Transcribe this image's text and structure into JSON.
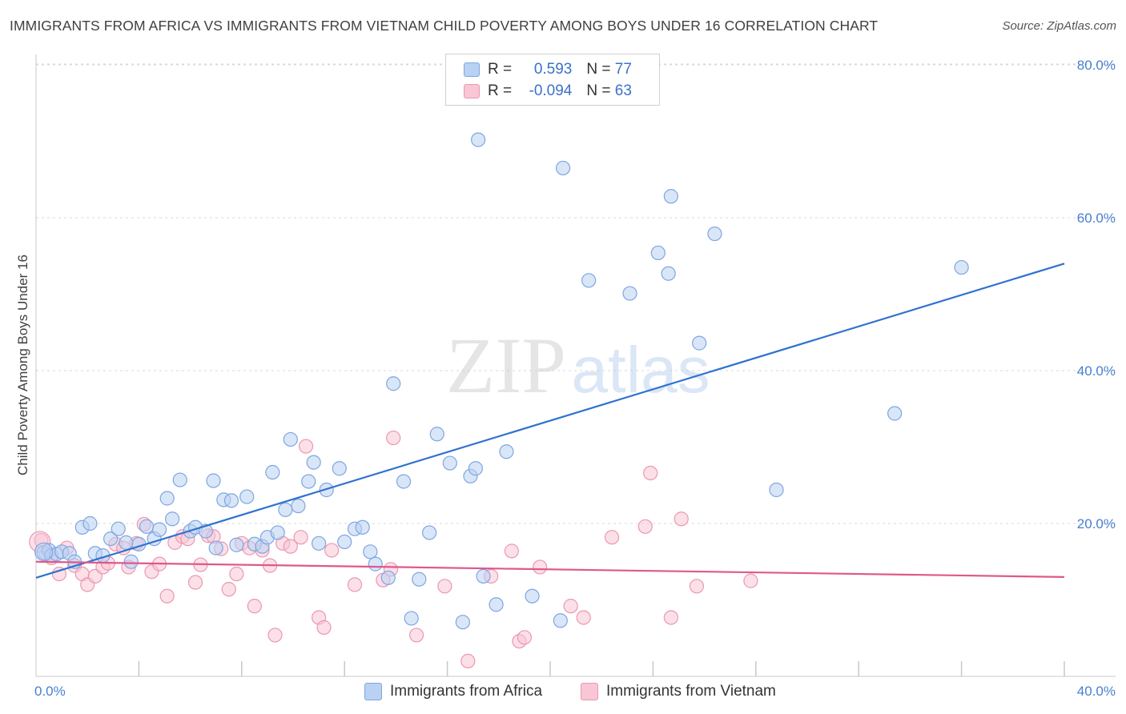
{
  "title": "IMMIGRANTS FROM AFRICA VS IMMIGRANTS FROM VIETNAM CHILD POVERTY AMONG BOYS UNDER 16 CORRELATION CHART",
  "source": "Source: ZipAtlas.com",
  "watermark": {
    "zip": "ZIP",
    "atlas": "atlas"
  },
  "colors": {
    "africa_fill": "#b9d1f3",
    "africa_stroke": "#7ea6e0",
    "africa_line": "#2f72d0",
    "vietnam_fill": "#f8c6d5",
    "vietnam_stroke": "#ec97b2",
    "vietnam_line": "#e0588a",
    "tick_text": "#4a7fd0",
    "grid": "#d8d8d8"
  },
  "legend": {
    "rows": [
      {
        "r_label": "R = ",
        "r_value": "0.593",
        "n_label": "N = ",
        "n_value": "77"
      },
      {
        "r_label": "R = ",
        "r_value": "-0.094",
        "n_label": "N = ",
        "n_value": "63"
      }
    ]
  },
  "bottom_legend": [
    {
      "label": "Immigrants from Africa"
    },
    {
      "label": "Immigrants from Vietnam"
    }
  ],
  "chart_data": {
    "type": "scatter",
    "ylabel": "Child Poverty Among Boys Under 16",
    "xlim": [
      0,
      40
    ],
    "ylim": [
      0,
      85
    ],
    "x_tick_labels": [
      "0.0%",
      "40.0%"
    ],
    "y_ticks": [
      20,
      40,
      60,
      80
    ],
    "y_tick_labels": [
      "20.0%",
      "40.0%",
      "60.0%",
      "80.0%"
    ],
    "grid": "horizontal dashed",
    "series": [
      {
        "name": "Immigrants from Africa",
        "r": 0.593,
        "n": 77,
        "trend": [
          [
            0,
            12.9
          ],
          [
            40,
            54.0
          ]
        ],
        "points": [
          [
            0.3,
            16.2
          ],
          [
            0.5,
            16.5
          ],
          [
            0.6,
            15.8
          ],
          [
            0.8,
            16.0
          ],
          [
            1.0,
            16.3
          ],
          [
            1.3,
            16.1
          ],
          [
            1.5,
            15.0
          ],
          [
            1.8,
            19.5
          ],
          [
            2.1,
            20.0
          ],
          [
            2.3,
            16.1
          ],
          [
            2.6,
            15.8
          ],
          [
            2.9,
            18.0
          ],
          [
            3.2,
            19.3
          ],
          [
            3.5,
            17.5
          ],
          [
            3.7,
            15.0
          ],
          [
            4.0,
            17.3
          ],
          [
            4.3,
            19.6
          ],
          [
            4.6,
            18.0
          ],
          [
            4.8,
            19.2
          ],
          [
            5.1,
            23.3
          ],
          [
            5.3,
            20.6
          ],
          [
            5.6,
            25.7
          ],
          [
            6.0,
            19.0
          ],
          [
            6.2,
            19.5
          ],
          [
            6.6,
            19.0
          ],
          [
            6.9,
            25.6
          ],
          [
            7.0,
            16.8
          ],
          [
            7.3,
            23.1
          ],
          [
            7.6,
            23.0
          ],
          [
            7.8,
            17.2
          ],
          [
            8.2,
            23.5
          ],
          [
            8.5,
            17.3
          ],
          [
            8.8,
            17.0
          ],
          [
            9.0,
            18.2
          ],
          [
            9.2,
            26.7
          ],
          [
            9.4,
            18.8
          ],
          [
            9.7,
            21.8
          ],
          [
            9.9,
            31.0
          ],
          [
            10.2,
            22.3
          ],
          [
            10.6,
            25.5
          ],
          [
            10.8,
            28.0
          ],
          [
            11.0,
            17.4
          ],
          [
            11.3,
            24.4
          ],
          [
            11.8,
            27.2
          ],
          [
            12.0,
            17.6
          ],
          [
            12.4,
            19.3
          ],
          [
            12.7,
            19.5
          ],
          [
            13.0,
            16.3
          ],
          [
            13.2,
            14.7
          ],
          [
            13.7,
            12.9
          ],
          [
            13.9,
            38.3
          ],
          [
            14.3,
            25.5
          ],
          [
            14.6,
            7.6
          ],
          [
            14.9,
            12.7
          ],
          [
            15.3,
            18.8
          ],
          [
            15.6,
            31.7
          ],
          [
            16.1,
            27.9
          ],
          [
            16.6,
            7.1
          ],
          [
            16.9,
            26.2
          ],
          [
            17.1,
            27.2
          ],
          [
            17.4,
            13.1
          ],
          [
            17.9,
            9.4
          ],
          [
            18.3,
            29.4
          ],
          [
            17.2,
            70.2
          ],
          [
            19.3,
            10.5
          ],
          [
            20.4,
            7.3
          ],
          [
            20.5,
            66.5
          ],
          [
            21.5,
            51.8
          ],
          [
            23.1,
            50.1
          ],
          [
            24.2,
            55.4
          ],
          [
            24.6,
            52.7
          ],
          [
            24.7,
            62.8
          ],
          [
            25.8,
            43.6
          ],
          [
            26.4,
            57.9
          ],
          [
            28.8,
            24.4
          ],
          [
            33.4,
            34.4
          ],
          [
            36.0,
            53.5
          ]
        ]
      },
      {
        "name": "Immigrants from Vietnam",
        "r": -0.094,
        "n": 63,
        "trend": [
          [
            0,
            15.0
          ],
          [
            40,
            13.0
          ]
        ],
        "points": [
          [
            0.2,
            17.8
          ],
          [
            0.4,
            16.0
          ],
          [
            0.6,
            15.5
          ],
          [
            0.9,
            13.4
          ],
          [
            1.2,
            16.8
          ],
          [
            1.5,
            14.5
          ],
          [
            1.8,
            13.4
          ],
          [
            2.0,
            12.0
          ],
          [
            2.3,
            13.1
          ],
          [
            2.6,
            14.3
          ],
          [
            2.8,
            14.8
          ],
          [
            3.1,
            17.3
          ],
          [
            3.4,
            16.8
          ],
          [
            3.6,
            14.3
          ],
          [
            3.9,
            17.4
          ],
          [
            4.2,
            19.9
          ],
          [
            4.5,
            13.7
          ],
          [
            4.8,
            14.7
          ],
          [
            5.1,
            10.5
          ],
          [
            5.4,
            17.5
          ],
          [
            5.7,
            18.3
          ],
          [
            5.9,
            18.0
          ],
          [
            6.2,
            12.3
          ],
          [
            6.4,
            14.6
          ],
          [
            6.7,
            18.4
          ],
          [
            6.9,
            18.3
          ],
          [
            7.2,
            16.7
          ],
          [
            7.5,
            11.4
          ],
          [
            7.8,
            13.4
          ],
          [
            8.0,
            17.4
          ],
          [
            8.3,
            16.8
          ],
          [
            8.5,
            9.2
          ],
          [
            8.8,
            16.5
          ],
          [
            9.1,
            14.5
          ],
          [
            9.3,
            5.4
          ],
          [
            9.6,
            17.4
          ],
          [
            9.9,
            17.0
          ],
          [
            10.3,
            18.2
          ],
          [
            10.5,
            30.1
          ],
          [
            11.0,
            7.7
          ],
          [
            11.2,
            6.4
          ],
          [
            11.5,
            16.5
          ],
          [
            12.4,
            12.0
          ],
          [
            13.5,
            12.6
          ],
          [
            13.8,
            14.0
          ],
          [
            13.9,
            31.2
          ],
          [
            14.8,
            5.4
          ],
          [
            15.9,
            11.8
          ],
          [
            16.8,
            2.0
          ],
          [
            17.7,
            13.1
          ],
          [
            18.5,
            16.4
          ],
          [
            18.8,
            4.6
          ],
          [
            19.0,
            5.1
          ],
          [
            19.6,
            14.3
          ],
          [
            20.8,
            9.2
          ],
          [
            21.3,
            7.7
          ],
          [
            22.4,
            18.2
          ],
          [
            23.7,
            19.6
          ],
          [
            23.9,
            26.6
          ],
          [
            24.7,
            7.7
          ],
          [
            25.1,
            20.6
          ],
          [
            25.7,
            11.8
          ],
          [
            27.8,
            12.5
          ]
        ]
      }
    ]
  }
}
